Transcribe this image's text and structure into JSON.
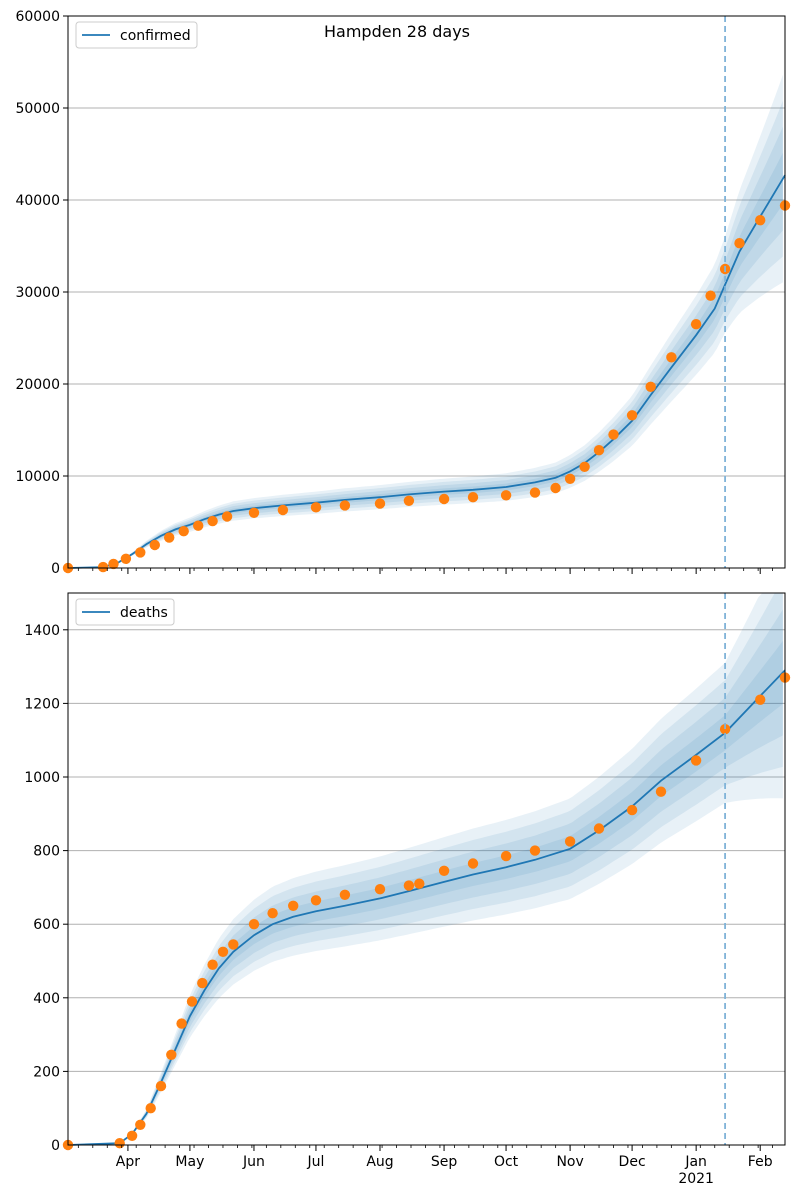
{
  "figure": {
    "title": "Hampden 28 days",
    "month_labels": [
      "Apr",
      "May",
      "Jun",
      "Jul",
      "Aug",
      "Sep",
      "Oct",
      "Nov",
      "Dec",
      "Jan",
      "Feb"
    ],
    "year_label": "2021"
  },
  "chart_data": [
    {
      "type": "line",
      "title": "Hampden 28 days",
      "ylim": [
        0,
        60000
      ],
      "yticks": [
        0,
        10000,
        20000,
        30000,
        40000,
        50000,
        60000
      ],
      "x_range": [
        "2020-03-03",
        "2021-02-13"
      ],
      "forecast_start": "2021-01-15",
      "grid": "horizontal",
      "legend_position": "top-left",
      "colors": {
        "model": "#1f77b4",
        "observed": "#ff7f0e",
        "band": "#1f77b4",
        "forecast_line": "#7fb3d8"
      },
      "series": [
        {
          "name": "confirmed",
          "role": "model",
          "x": [
            "2020-03-03",
            "2020-03-20",
            "2020-03-27",
            "2020-04-03",
            "2020-04-10",
            "2020-04-17",
            "2020-04-24",
            "2020-05-01",
            "2020-05-08",
            "2020-05-15",
            "2020-05-22",
            "2020-06-01",
            "2020-06-15",
            "2020-07-01",
            "2020-07-15",
            "2020-08-01",
            "2020-08-15",
            "2020-09-01",
            "2020-09-15",
            "2020-10-01",
            "2020-10-15",
            "2020-10-25",
            "2020-11-01",
            "2020-11-08",
            "2020-11-15",
            "2020-11-22",
            "2020-12-01",
            "2020-12-10",
            "2020-12-20",
            "2021-01-01",
            "2021-01-10",
            "2021-01-15",
            "2021-01-22",
            "2021-02-01",
            "2021-02-13"
          ],
          "y": [
            0,
            100,
            550,
            1500,
            2600,
            3500,
            4200,
            4700,
            5300,
            5800,
            6200,
            6500,
            6800,
            7100,
            7400,
            7700,
            8000,
            8300,
            8500,
            8800,
            9300,
            9800,
            10500,
            11400,
            12600,
            14000,
            16000,
            18800,
            21800,
            25300,
            28200,
            30800,
            34400,
            38200,
            42700
          ]
        },
        {
          "name": "observed confirmed",
          "role": "observed",
          "x": [
            "2020-03-03",
            "2020-03-20",
            "2020-03-25",
            "2020-03-31",
            "2020-04-07",
            "2020-04-14",
            "2020-04-21",
            "2020-04-28",
            "2020-05-05",
            "2020-05-12",
            "2020-05-19",
            "2020-06-01",
            "2020-06-15",
            "2020-07-01",
            "2020-07-15",
            "2020-08-01",
            "2020-08-15",
            "2020-09-01",
            "2020-09-15",
            "2020-10-01",
            "2020-10-15",
            "2020-10-25",
            "2020-11-01",
            "2020-11-08",
            "2020-11-15",
            "2020-11-22",
            "2020-12-01",
            "2020-12-10",
            "2020-12-20",
            "2021-01-01",
            "2021-01-08",
            "2021-01-15",
            "2021-01-22",
            "2021-02-01",
            "2021-02-13"
          ],
          "y": [
            0,
            100,
            450,
            1000,
            1700,
            2500,
            3300,
            4000,
            4600,
            5100,
            5600,
            6000,
            6300,
            6600,
            6800,
            7000,
            7300,
            7500,
            7700,
            7900,
            8200,
            8700,
            9700,
            11000,
            12800,
            14500,
            16600,
            19700,
            22900,
            26500,
            29600,
            32500,
            35300,
            37800,
            39400
          ]
        }
      ]
    },
    {
      "type": "line",
      "ylim": [
        0,
        1500
      ],
      "yticks": [
        0,
        200,
        400,
        600,
        800,
        1000,
        1200,
        1400
      ],
      "x_range": [
        "2020-03-03",
        "2021-02-13"
      ],
      "forecast_start": "2021-01-15",
      "grid": "horizontal",
      "legend_position": "top-left",
      "colors": {
        "model": "#1f77b4",
        "observed": "#ff7f0e",
        "band": "#1f77b4",
        "forecast_line": "#7fb3d8"
      },
      "series": [
        {
          "name": "deaths",
          "role": "model",
          "x": [
            "2020-03-03",
            "2020-03-28",
            "2020-04-03",
            "2020-04-10",
            "2020-04-17",
            "2020-04-24",
            "2020-05-01",
            "2020-05-08",
            "2020-05-15",
            "2020-05-22",
            "2020-06-01",
            "2020-06-10",
            "2020-06-20",
            "2020-07-01",
            "2020-07-15",
            "2020-08-01",
            "2020-08-15",
            "2020-09-01",
            "2020-09-15",
            "2020-10-01",
            "2020-10-15",
            "2020-11-01",
            "2020-11-15",
            "2020-12-01",
            "2020-12-15",
            "2021-01-01",
            "2021-01-15",
            "2021-02-01",
            "2021-02-13"
          ],
          "y": [
            0,
            5,
            30,
            85,
            170,
            260,
            350,
            420,
            480,
            525,
            570,
            600,
            620,
            635,
            650,
            670,
            690,
            715,
            735,
            755,
            775,
            805,
            855,
            920,
            990,
            1060,
            1120,
            1220,
            1290
          ]
        },
        {
          "name": "observed deaths",
          "role": "observed",
          "x": [
            "2020-03-03",
            "2020-03-28",
            "2020-04-03",
            "2020-04-07",
            "2020-04-12",
            "2020-04-17",
            "2020-04-22",
            "2020-04-27",
            "2020-05-02",
            "2020-05-07",
            "2020-05-12",
            "2020-05-17",
            "2020-05-22",
            "2020-06-01",
            "2020-06-10",
            "2020-06-20",
            "2020-07-01",
            "2020-07-15",
            "2020-08-01",
            "2020-08-15",
            "2020-08-20",
            "2020-09-01",
            "2020-09-15",
            "2020-10-01",
            "2020-10-15",
            "2020-11-01",
            "2020-11-15",
            "2020-12-01",
            "2020-12-15",
            "2021-01-01",
            "2021-01-15",
            "2021-02-01",
            "2021-02-13"
          ],
          "y": [
            0,
            5,
            25,
            55,
            100,
            160,
            245,
            330,
            390,
            440,
            490,
            525,
            545,
            600,
            630,
            650,
            665,
            680,
            695,
            705,
            710,
            745,
            765,
            785,
            800,
            825,
            860,
            910,
            960,
            1045,
            1130,
            1210,
            1270
          ]
        }
      ]
    }
  ]
}
